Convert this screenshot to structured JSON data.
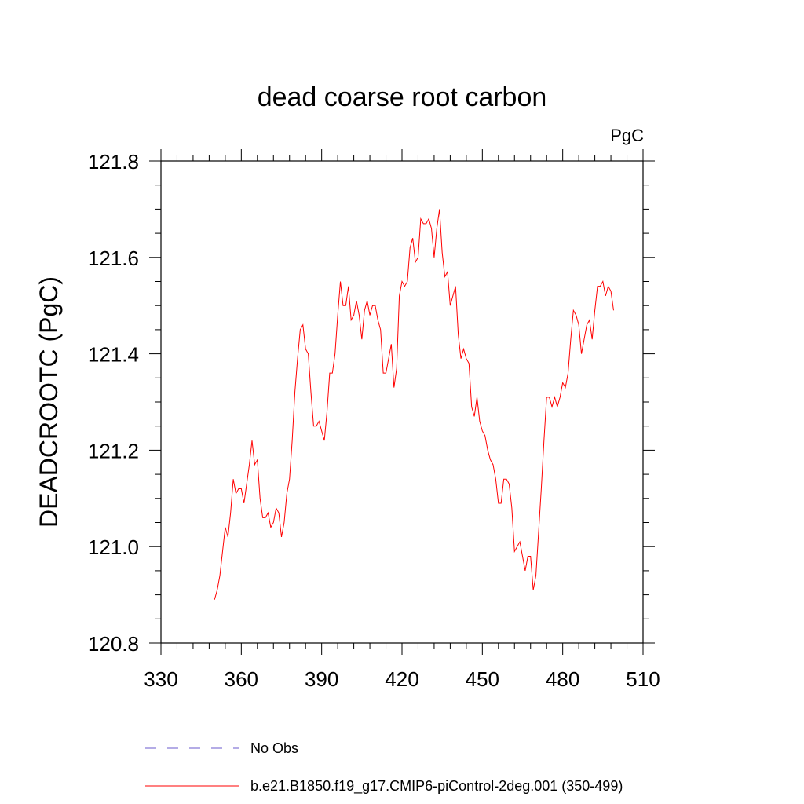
{
  "chart_data": {
    "type": "line",
    "title": "dead coarse root carbon",
    "units_label": "PgC",
    "ylabel": "DEADCROOTC  (PgC)",
    "xlabel": "",
    "xlim": [
      330,
      510
    ],
    "ylim": [
      120.8,
      121.8
    ],
    "x_ticks": [
      330,
      360,
      390,
      420,
      450,
      480,
      510
    ],
    "y_ticks": [
      "120.8",
      "121.0",
      "121.2",
      "121.4",
      "121.6",
      "121.8"
    ],
    "legend": [
      {
        "label": "No Obs",
        "color": "#6a5acd",
        "style": "dashed"
      },
      {
        "label": "b.e21.B1850.f19_g17.CMIP6-piControl-2deg.001 (350-499)",
        "color": "#ff0000",
        "style": "solid"
      }
    ],
    "series": [
      {
        "name": "b.e21.B1850.f19_g17.CMIP6-piControl-2deg.001 (350-499)",
        "color": "#ff0000",
        "x_start": 350,
        "values": [
          120.89,
          120.91,
          120.94,
          120.99,
          121.04,
          121.02,
          121.07,
          121.14,
          121.11,
          121.12,
          121.12,
          121.09,
          121.13,
          121.17,
          121.22,
          121.17,
          121.18,
          121.1,
          121.06,
          121.06,
          121.07,
          121.04,
          121.05,
          121.08,
          121.07,
          121.02,
          121.05,
          121.11,
          121.14,
          121.22,
          121.32,
          121.39,
          121.45,
          121.46,
          121.41,
          121.4,
          121.32,
          121.25,
          121.25,
          121.26,
          121.24,
          121.22,
          121.28,
          121.36,
          121.36,
          121.4,
          121.48,
          121.55,
          121.5,
          121.5,
          121.54,
          121.47,
          121.48,
          121.51,
          121.48,
          121.43,
          121.49,
          121.51,
          121.48,
          121.5,
          121.5,
          121.47,
          121.45,
          121.36,
          121.36,
          121.39,
          121.42,
          121.33,
          121.37,
          121.52,
          121.55,
          121.54,
          121.55,
          121.62,
          121.64,
          121.59,
          121.6,
          121.68,
          121.67,
          121.67,
          121.68,
          121.66,
          121.6,
          121.66,
          121.7,
          121.61,
          121.56,
          121.57,
          121.5,
          121.52,
          121.54,
          121.44,
          121.39,
          121.41,
          121.39,
          121.38,
          121.29,
          121.27,
          121.31,
          121.26,
          121.24,
          121.23,
          121.2,
          121.18,
          121.17,
          121.14,
          121.09,
          121.09,
          121.14,
          121.14,
          121.13,
          121.08,
          120.99,
          121.0,
          121.01,
          120.98,
          120.95,
          120.98,
          120.98,
          120.91,
          120.94,
          121.03,
          121.12,
          121.22,
          121.31,
          121.31,
          121.29,
          121.31,
          121.29,
          121.31,
          121.34,
          121.33,
          121.36,
          121.43,
          121.49,
          121.48,
          121.46,
          121.4,
          121.43,
          121.46,
          121.47,
          121.43,
          121.49,
          121.54,
          121.54,
          121.55,
          121.52,
          121.54,
          121.53,
          121.49
        ]
      }
    ]
  }
}
